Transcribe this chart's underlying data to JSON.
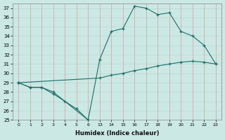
{
  "background_color": "#cbe8e4",
  "grid_color_v": "#d4a0a0",
  "grid_color_h": "#b8d8d4",
  "line_color": "#1a7068",
  "xlabel": "Humidex (Indice chaleur)",
  "ylim": [
    25,
    37.5
  ],
  "yticks": [
    25,
    26,
    27,
    28,
    29,
    30,
    31,
    32,
    33,
    34,
    35,
    36,
    37
  ],
  "xtick_labels": [
    "0",
    "1",
    "2",
    "3",
    "4",
    "5",
    "6",
    "13",
    "14",
    "15",
    "16",
    "17",
    "18",
    "19",
    "20",
    "21",
    "22",
    "23"
  ],
  "xtick_pos": [
    0,
    1,
    2,
    3,
    4,
    5,
    6,
    7,
    8,
    9,
    10,
    11,
    12,
    13,
    14,
    15,
    16,
    17
  ],
  "series": [
    {
      "xpos": [
        0,
        1,
        2,
        3,
        4,
        5,
        6
      ],
      "y": [
        29.0,
        28.5,
        28.5,
        27.8,
        27.0,
        26.2,
        25.0
      ]
    },
    {
      "xpos": [
        0,
        1,
        2,
        3,
        6,
        7,
        8,
        9,
        10,
        11,
        12,
        13,
        14,
        15,
        16,
        17
      ],
      "y": [
        29.0,
        28.5,
        28.5,
        28.0,
        25.0,
        31.5,
        34.5,
        34.8,
        37.2,
        37.0,
        36.3,
        36.5,
        34.5,
        34.0,
        33.0,
        31.0
      ]
    },
    {
      "xpos": [
        0,
        7,
        8,
        9,
        10,
        11,
        12,
        13,
        14,
        15,
        16,
        17
      ],
      "y": [
        29.0,
        29.5,
        29.8,
        30.0,
        30.3,
        30.5,
        30.8,
        31.0,
        31.2,
        31.3,
        31.2,
        31.0
      ]
    }
  ]
}
